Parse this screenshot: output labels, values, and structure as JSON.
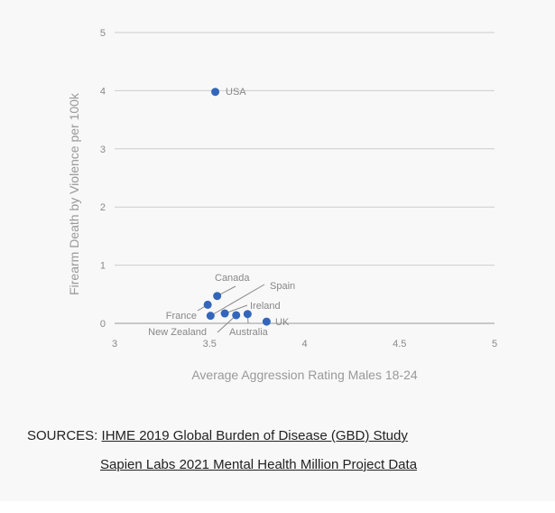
{
  "chart_data": {
    "type": "scatter",
    "xlabel": "Average Aggression Rating Males 18-24",
    "ylabel": "Firearm Death by Violence per 100k",
    "xlim": [
      3,
      5
    ],
    "ylim": [
      0,
      5
    ],
    "xticks": [
      "3",
      "3.5",
      "4",
      "4.5",
      "5"
    ],
    "yticks": [
      "0",
      "1",
      "2",
      "3",
      "4",
      "5"
    ],
    "grid": "horizontal",
    "point_color": "#3366bb",
    "points": [
      {
        "label": "USA",
        "x": 3.53,
        "y": 3.98
      },
      {
        "label": "Canada",
        "x": 3.54,
        "y": 0.47
      },
      {
        "label": "France",
        "x": 3.49,
        "y": 0.32
      },
      {
        "label": "Spain",
        "x": 3.505,
        "y": 0.13
      },
      {
        "label": "Ireland",
        "x": 3.58,
        "y": 0.17
      },
      {
        "label": "New Zealand",
        "x": 3.64,
        "y": 0.14
      },
      {
        "label": "Australia",
        "x": 3.7,
        "y": 0.16
      },
      {
        "label": "UK",
        "x": 3.8,
        "y": 0.03
      }
    ]
  },
  "sources": {
    "prefix": "SOURCES:",
    "links": [
      "IHME 2019 Global Burden of Disease (GBD) Study",
      "Sapien Labs 2021 Mental Health Million Project Data"
    ]
  }
}
